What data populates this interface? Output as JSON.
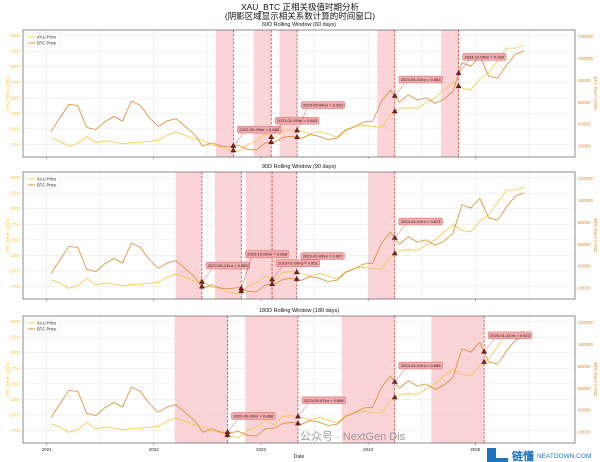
{
  "title_line1": "XAU_BTC 正相关极值时期分析",
  "title_line2": "(阴影区域显示相关系数计算的时间窗口)",
  "watermark": "公众号 · NextGen Dis",
  "logo": {
    "text": "链懂",
    "sub": "NEATDOWN.COM"
  },
  "chart_data": {
    "type": "line",
    "xlabel": "Date",
    "ylabel_left": "XAU Price (USD)",
    "ylabel_right": "BTC Price (USD)",
    "x_ticks": [
      "2021",
      "2022",
      "2023",
      "2024",
      "2025"
    ],
    "y_left_ticks": [
      1750,
      2000,
      2250,
      2500,
      2750,
      3000,
      3250,
      3500
    ],
    "y_right_ticks": [
      20000,
      40000,
      60000,
      80000,
      100000,
      120000
    ],
    "ylim_left": [
      1550,
      3590
    ],
    "ylim_right": [
      10000,
      126000
    ],
    "grid": true,
    "legend_placement": "top-left",
    "colors": {
      "xau": "#f5c542",
      "btc": "#d98a2e",
      "window": "#f9c6c9",
      "marker_line": "#c0392b",
      "marker": "#8b1a1a"
    },
    "dates_monthly_from": "2021-01",
    "series": [
      {
        "name": "XAU Price",
        "axis": "left",
        "values": [
          1860,
          1800,
          1720,
          1770,
          1880,
          1780,
          1810,
          1790,
          1760,
          1780,
          1790,
          1800,
          1820,
          1900,
          1950,
          1900,
          1840,
          1820,
          1740,
          1720,
          1660,
          1640,
          1750,
          1810,
          1920,
          1840,
          1980,
          1990,
          1960,
          1920,
          1960,
          1920,
          1870,
          1990,
          2040,
          2060,
          2040,
          2030,
          2230,
          2330,
          2340,
          2330,
          2420,
          2500,
          2630,
          2740,
          2650,
          2630,
          2800,
          2900,
          3100,
          3300,
          3300,
          3350
        ]
      },
      {
        "name": "BTC Price",
        "axis": "right",
        "values": [
          33000,
          46000,
          58000,
          57000,
          37000,
          35000,
          42000,
          47000,
          43000,
          61000,
          57000,
          46000,
          38000,
          43000,
          45000,
          38000,
          31000,
          20000,
          23000,
          20000,
          19500,
          20500,
          17000,
          16500,
          23000,
          23500,
          28000,
          29000,
          27000,
          30500,
          29000,
          26000,
          27000,
          34500,
          37700,
          42000,
          42500,
          61000,
          71000,
          60000,
          67000,
          62000,
          64000,
          59000,
          63000,
          70000,
          96000,
          93000,
          102000,
          84000,
          82000,
          94000,
          104000,
          107000
        ]
      }
    ],
    "panels": [
      {
        "title": "60D Rolling Window (60 days)",
        "window_days": 60,
        "peaks": [
          {
            "date": "2022-09-29",
            "label": "2022-09-29\\nr = 0.886"
          },
          {
            "date": "2023-02-05",
            "label": "2023-02-05\\nr = 0.883"
          },
          {
            "date": "2023-05-04",
            "label": "2023-05-04\\nr = 0.933"
          },
          {
            "date": "2024-04-01",
            "label": "2024-04-01\\nr = 0.883"
          },
          {
            "date": "2024-11-05",
            "label": "2024-11-05\\nr = 0.934"
          }
        ]
      },
      {
        "title": "90D Rolling Window (90 days)",
        "window_days": 90,
        "peaks": [
          {
            "date": "2022-06-14",
            "label": "2022-06-14\\nr = 0.853"
          },
          {
            "date": "2022-10-26",
            "label": "2022-10-26\\nr = 0.868"
          },
          {
            "date": "2023-02-08",
            "label": "2023-02-08\\nr = 0.851"
          },
          {
            "date": "2023-05-03",
            "label": "2023-05-03\\nr = 0.907"
          },
          {
            "date": "2024-04-01",
            "label": "2024-04-01\\nr = 0.873"
          }
        ]
      },
      {
        "title": "180D Rolling Window (180 days)",
        "window_days": 180,
        "peaks": [
          {
            "date": "2022-09-09",
            "label": "2022-09-09\\nr = 0.888"
          },
          {
            "date": "2023-05-07",
            "label": "2023-05-07\\nr = 0.898"
          },
          {
            "date": "2024-04-01",
            "label": "2024-04-01\\nr = 0.886"
          },
          {
            "date": "2025-01-31",
            "label": "2025-01-31\\nr = 0.923"
          }
        ]
      }
    ]
  }
}
